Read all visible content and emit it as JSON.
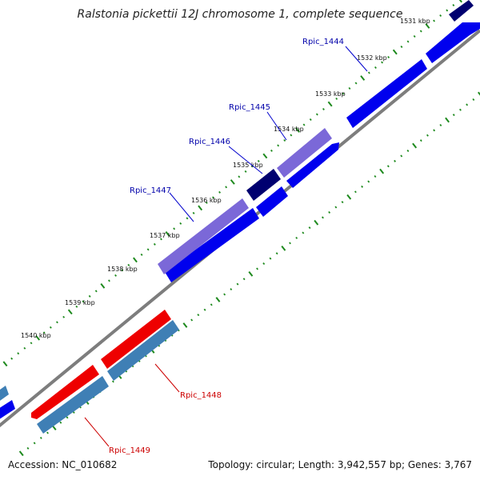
{
  "title": "Ralstonia pickettii 12J chromosome 1, complete sequence",
  "accession": "Accession: NC_010682",
  "summary": "Topology: circular; Length: 3,942,557 bp; Genes: 3,767",
  "colors": {
    "backbone": "#808080",
    "tick": "#1e8a1e",
    "forward_cds": "#0000ee",
    "reverse_cds": "#3f7fb5",
    "dark_cds": "#000070",
    "purple_cds": "#7b68d8",
    "red_cds": "#ee0000",
    "label_blue": "#0000aa",
    "label_red": "#cc0000"
  },
  "scale_labels": [
    "1531 kbp",
    "1532 kbp",
    "1533 kbp",
    "1534 kbp",
    "1535 kbp",
    "1536 kbp",
    "1537 kbp",
    "1538 kbp",
    "1539 kbp",
    "1540 kbp"
  ],
  "gene_labels": [
    {
      "name": "Rpic_1444",
      "color": "label_blue"
    },
    {
      "name": "Rpic_1445",
      "color": "label_blue"
    },
    {
      "name": "Rpic_1446",
      "color": "label_blue"
    },
    {
      "name": "Rpic_1447",
      "color": "label_blue"
    },
    {
      "name": "Rpic_1448",
      "color": "label_red"
    },
    {
      "name": "Rpic_1449",
      "color": "label_red"
    }
  ]
}
